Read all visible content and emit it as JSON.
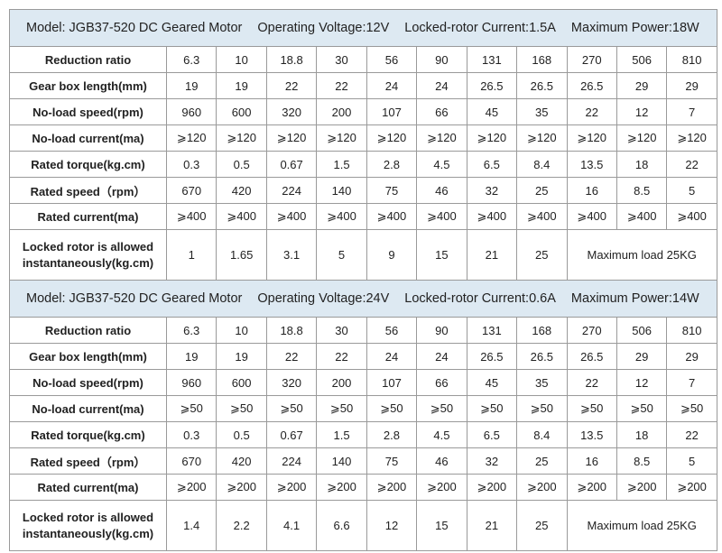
{
  "sections": [
    {
      "header": [
        "Model: JGB37-520 DC Geared Motor",
        "Operating Voltage:12V",
        "Locked-rotor Current:1.5A",
        "Maximum Power:18W"
      ],
      "rows": [
        {
          "label": "Reduction ratio",
          "cells": [
            "6.3",
            "10",
            "18.8",
            "30",
            "56",
            "90",
            "131",
            "168",
            "270",
            "506",
            "810"
          ]
        },
        {
          "label": "Gear box length(mm)",
          "cells": [
            "19",
            "19",
            "22",
            "22",
            "24",
            "24",
            "26.5",
            "26.5",
            "26.5",
            "29",
            "29"
          ]
        },
        {
          "label": "No-load speed(rpm)",
          "cells": [
            "960",
            "600",
            "320",
            "200",
            "107",
            "66",
            "45",
            "35",
            "22",
            "12",
            "7"
          ]
        },
        {
          "label": "No-load current(ma)",
          "cells": [
            "⩾120",
            "⩾120",
            "⩾120",
            "⩾120",
            "⩾120",
            "⩾120",
            "⩾120",
            "⩾120",
            "⩾120",
            "⩾120",
            "⩾120"
          ]
        },
        {
          "label": "Rated torque(kg.cm)",
          "cells": [
            "0.3",
            "0.5",
            "0.67",
            "1.5",
            "2.8",
            "4.5",
            "6.5",
            "8.4",
            "13.5",
            "18",
            "22"
          ]
        },
        {
          "label": "Rated speed（rpm）",
          "cells": [
            "670",
            "420",
            "224",
            "140",
            "75",
            "46",
            "32",
            "25",
            "16",
            "8.5",
            "5"
          ]
        },
        {
          "label": "Rated current(ma)",
          "cells": [
            "⩾400",
            "⩾400",
            "⩾400",
            "⩾400",
            "⩾400",
            "⩾400",
            "⩾400",
            "⩾400",
            "⩾400",
            "⩾400",
            "⩾400"
          ]
        }
      ],
      "locked": {
        "label": [
          "Locked rotor is allowed",
          "instantaneously(kg.cm)"
        ],
        "cells": [
          "1",
          "1.65",
          "3.1",
          "5",
          "9",
          "15",
          "21",
          "25"
        ],
        "note": "Maximum load 25KG"
      }
    },
    {
      "header": [
        "Model: JGB37-520 DC Geared Motor",
        "Operating Voltage:24V",
        "Locked-rotor Current:0.6A",
        "Maximum Power:14W"
      ],
      "rows": [
        {
          "label": "Reduction ratio",
          "cells": [
            "6.3",
            "10",
            "18.8",
            "30",
            "56",
            "90",
            "131",
            "168",
            "270",
            "506",
            "810"
          ]
        },
        {
          "label": "Gear box length(mm)",
          "cells": [
            "19",
            "19",
            "22",
            "22",
            "24",
            "24",
            "26.5",
            "26.5",
            "26.5",
            "29",
            "29"
          ]
        },
        {
          "label": "No-load speed(rpm)",
          "cells": [
            "960",
            "600",
            "320",
            "200",
            "107",
            "66",
            "45",
            "35",
            "22",
            "12",
            "7"
          ]
        },
        {
          "label": "No-load current(ma)",
          "cells": [
            "⩾50",
            "⩾50",
            "⩾50",
            "⩾50",
            "⩾50",
            "⩾50",
            "⩾50",
            "⩾50",
            "⩾50",
            "⩾50",
            "⩾50"
          ]
        },
        {
          "label": "Rated torque(kg.cm)",
          "cells": [
            "0.3",
            "0.5",
            "0.67",
            "1.5",
            "2.8",
            "4.5",
            "6.5",
            "8.4",
            "13.5",
            "18",
            "22"
          ]
        },
        {
          "label": "Rated speed（rpm）",
          "cells": [
            "670",
            "420",
            "224",
            "140",
            "75",
            "46",
            "32",
            "25",
            "16",
            "8.5",
            "5"
          ]
        },
        {
          "label": "Rated current(ma)",
          "cells": [
            "⩾200",
            "⩾200",
            "⩾200",
            "⩾200",
            "⩾200",
            "⩾200",
            "⩾200",
            "⩾200",
            "⩾200",
            "⩾200",
            "⩾200"
          ]
        }
      ],
      "locked": {
        "label": [
          "Locked rotor is allowed",
          "instantaneously(kg.cm)"
        ],
        "cells": [
          "1.4",
          "2.2",
          "4.1",
          "6.6",
          "12",
          "15",
          "21",
          "25"
        ],
        "note": "Maximum load 25KG"
      }
    }
  ]
}
